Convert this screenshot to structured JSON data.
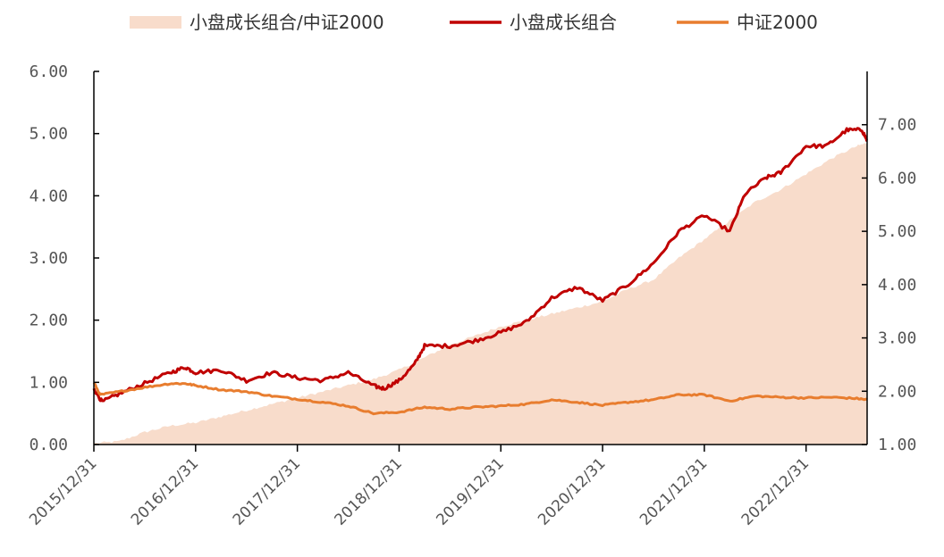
{
  "chart_data": {
    "type": "line",
    "legend": {
      "placement": "top-center",
      "items": [
        {
          "label": "小盘成长组合/中证2000",
          "kind": "area",
          "color": "#f8dccb"
        },
        {
          "label": "小盘成长组合",
          "kind": "line",
          "color": "#c00000"
        },
        {
          "label": "中证2000",
          "kind": "line",
          "color": "#e87d2f"
        }
      ]
    },
    "x_ticks": [
      "2015/12/31",
      "2016/12/31",
      "2017/12/31",
      "2018/12/31",
      "2019/12/31",
      "2020/12/31",
      "2021/12/31",
      "2022/12/31"
    ],
    "x_range": [
      2016.0,
      2023.6
    ],
    "y_left": {
      "min": 0,
      "max": 6,
      "ticks": [
        "0.00",
        "1.00",
        "2.00",
        "3.00",
        "4.00",
        "5.00",
        "6.00"
      ]
    },
    "y_right": {
      "min": 1,
      "max": 8,
      "ticks": [
        "1.00",
        "2.00",
        "3.00",
        "4.00",
        "5.00",
        "6.00",
        "7.00"
      ]
    },
    "grid": false,
    "series": [
      {
        "name": "小盘成长组合/中证2000",
        "type": "area",
        "axis": "left",
        "color": "#f8dccb",
        "points": [
          [
            2016.0,
            0.02
          ],
          [
            2016.25,
            0.05
          ],
          [
            2016.5,
            0.2
          ],
          [
            2016.75,
            0.3
          ],
          [
            2017.0,
            0.35
          ],
          [
            2017.25,
            0.45
          ],
          [
            2017.5,
            0.55
          ],
          [
            2017.75,
            0.65
          ],
          [
            2018.0,
            0.75
          ],
          [
            2018.25,
            0.85
          ],
          [
            2018.5,
            0.95
          ],
          [
            2018.75,
            1.05
          ],
          [
            2019.0,
            1.2
          ],
          [
            2019.25,
            1.4
          ],
          [
            2019.5,
            1.6
          ],
          [
            2019.75,
            1.75
          ],
          [
            2020.0,
            1.9
          ],
          [
            2020.25,
            2.0
          ],
          [
            2020.5,
            2.1
          ],
          [
            2020.75,
            2.2
          ],
          [
            2021.0,
            2.3
          ],
          [
            2021.25,
            2.5
          ],
          [
            2021.5,
            2.65
          ],
          [
            2021.75,
            3.0
          ],
          [
            2022.0,
            3.3
          ],
          [
            2022.25,
            3.6
          ],
          [
            2022.5,
            3.9
          ],
          [
            2022.75,
            4.1
          ],
          [
            2023.0,
            4.35
          ],
          [
            2023.25,
            4.6
          ],
          [
            2023.5,
            4.8
          ],
          [
            2023.6,
            4.85
          ]
        ]
      },
      {
        "name": "小盘成长组合",
        "type": "line",
        "axis": "right",
        "color": "#c00000",
        "points": [
          [
            2016.0,
            2.05
          ],
          [
            2016.08,
            1.8
          ],
          [
            2016.25,
            1.95
          ],
          [
            2016.5,
            2.15
          ],
          [
            2016.75,
            2.35
          ],
          [
            2016.9,
            2.45
          ],
          [
            2017.0,
            2.35
          ],
          [
            2017.25,
            2.4
          ],
          [
            2017.5,
            2.2
          ],
          [
            2017.75,
            2.35
          ],
          [
            2018.0,
            2.25
          ],
          [
            2018.25,
            2.2
          ],
          [
            2018.5,
            2.35
          ],
          [
            2018.75,
            2.1
          ],
          [
            2018.85,
            2.05
          ],
          [
            2019.0,
            2.2
          ],
          [
            2019.15,
            2.5
          ],
          [
            2019.25,
            2.85
          ],
          [
            2019.5,
            2.85
          ],
          [
            2019.75,
            2.95
          ],
          [
            2020.0,
            3.1
          ],
          [
            2020.25,
            3.3
          ],
          [
            2020.5,
            3.75
          ],
          [
            2020.75,
            3.95
          ],
          [
            2021.0,
            3.7
          ],
          [
            2021.25,
            4.0
          ],
          [
            2021.5,
            4.4
          ],
          [
            2021.75,
            5.0
          ],
          [
            2022.0,
            5.3
          ],
          [
            2022.25,
            5.0
          ],
          [
            2022.4,
            5.7
          ],
          [
            2022.6,
            6.0
          ],
          [
            2022.75,
            6.1
          ],
          [
            2023.0,
            6.6
          ],
          [
            2023.2,
            6.6
          ],
          [
            2023.4,
            6.9
          ],
          [
            2023.55,
            6.9
          ],
          [
            2023.6,
            6.7
          ]
        ]
      },
      {
        "name": "中证2000",
        "type": "line",
        "axis": "left",
        "color": "#e87d2f",
        "points": [
          [
            2016.0,
            1.0
          ],
          [
            2016.06,
            0.8
          ],
          [
            2016.25,
            0.85
          ],
          [
            2016.5,
            0.92
          ],
          [
            2016.75,
            0.98
          ],
          [
            2016.9,
            0.98
          ],
          [
            2017.0,
            0.95
          ],
          [
            2017.25,
            0.88
          ],
          [
            2017.5,
            0.85
          ],
          [
            2017.75,
            0.78
          ],
          [
            2018.0,
            0.73
          ],
          [
            2018.25,
            0.68
          ],
          [
            2018.5,
            0.62
          ],
          [
            2018.75,
            0.5
          ],
          [
            2019.0,
            0.52
          ],
          [
            2019.25,
            0.6
          ],
          [
            2019.5,
            0.57
          ],
          [
            2019.75,
            0.6
          ],
          [
            2020.0,
            0.62
          ],
          [
            2020.25,
            0.65
          ],
          [
            2020.5,
            0.72
          ],
          [
            2020.75,
            0.68
          ],
          [
            2021.0,
            0.63
          ],
          [
            2021.25,
            0.68
          ],
          [
            2021.5,
            0.72
          ],
          [
            2021.75,
            0.8
          ],
          [
            2022.0,
            0.8
          ],
          [
            2022.25,
            0.7
          ],
          [
            2022.5,
            0.78
          ],
          [
            2022.75,
            0.76
          ],
          [
            2023.0,
            0.75
          ],
          [
            2023.25,
            0.76
          ],
          [
            2023.5,
            0.74
          ],
          [
            2023.6,
            0.72
          ]
        ]
      }
    ]
  }
}
